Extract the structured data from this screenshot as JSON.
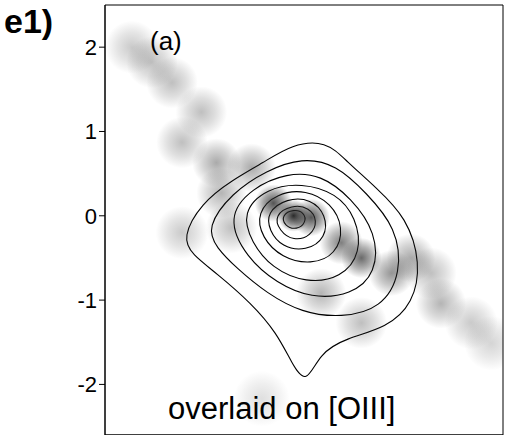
{
  "chart_data": {
    "type": "contour",
    "annotations": [
      "e1)",
      "(a)",
      "overlaid on [OIII]"
    ],
    "xlim": [
      -2.25,
      2.5
    ],
    "ylim": [
      -2.6,
      2.5
    ],
    "xticks": [
      -2,
      -1,
      0,
      1,
      2
    ],
    "yticks": [
      -2,
      -1,
      0,
      1,
      2
    ],
    "tick_labels": "y",
    "grid": false,
    "color": "#000000",
    "line_style": "solid",
    "contours": [
      {
        "points": [
          [
            -1.33,
            -0.26
          ],
          [
            -1.1,
            0.15
          ],
          [
            -0.74,
            0.42
          ],
          [
            -0.36,
            0.63
          ],
          [
            -0.02,
            0.85
          ],
          [
            0.39,
            0.89
          ],
          [
            0.63,
            0.65
          ],
          [
            0.99,
            0.33
          ],
          [
            1.35,
            -0.02
          ],
          [
            1.52,
            -0.56
          ],
          [
            1.43,
            -1.04
          ],
          [
            1.11,
            -1.33
          ],
          [
            0.63,
            -1.45
          ],
          [
            0.31,
            -1.63
          ],
          [
            0.15,
            -2.01
          ],
          [
            -0.02,
            -1.75
          ],
          [
            -0.2,
            -1.39
          ],
          [
            -0.5,
            -1.04
          ],
          [
            -0.92,
            -0.68
          ],
          [
            -1.21,
            -0.46
          ]
        ]
      },
      {
        "points": [
          [
            -1.04,
            -0.14
          ],
          [
            -0.74,
            0.27
          ],
          [
            -0.32,
            0.54
          ],
          [
            0.1,
            0.69
          ],
          [
            0.51,
            0.61
          ],
          [
            0.87,
            0.27
          ],
          [
            1.23,
            -0.14
          ],
          [
            1.29,
            -0.68
          ],
          [
            1.05,
            -1.1
          ],
          [
            0.57,
            -1.21
          ],
          [
            0.1,
            -1.15
          ],
          [
            -0.32,
            -0.92
          ],
          [
            -0.68,
            -0.62
          ],
          [
            -0.92,
            -0.38
          ]
        ]
      },
      {
        "points": [
          [
            -0.8,
            -0.02
          ],
          [
            -0.5,
            0.33
          ],
          [
            -0.08,
            0.51
          ],
          [
            0.33,
            0.49
          ],
          [
            0.69,
            0.21
          ],
          [
            0.99,
            -0.2
          ],
          [
            0.99,
            -0.68
          ],
          [
            0.69,
            -0.94
          ],
          [
            0.21,
            -0.98
          ],
          [
            -0.2,
            -0.8
          ],
          [
            -0.56,
            -0.5
          ]
        ]
      },
      {
        "points": [
          [
            -0.62,
            0.04
          ],
          [
            -0.32,
            0.33
          ],
          [
            0.1,
            0.39
          ],
          [
            0.51,
            0.27
          ],
          [
            0.75,
            -0.02
          ],
          [
            0.81,
            -0.44
          ],
          [
            0.57,
            -0.74
          ],
          [
            0.15,
            -0.8
          ],
          [
            -0.26,
            -0.62
          ],
          [
            -0.5,
            -0.32
          ]
        ]
      },
      {
        "points": [
          [
            -0.44,
            0.04
          ],
          [
            -0.2,
            0.27
          ],
          [
            0.15,
            0.31
          ],
          [
            0.45,
            0.15
          ],
          [
            0.6,
            -0.14
          ],
          [
            0.51,
            -0.46
          ],
          [
            0.21,
            -0.58
          ],
          [
            -0.14,
            -0.5
          ],
          [
            -0.38,
            -0.26
          ]
        ]
      },
      {
        "points": [
          [
            -0.32,
            0.04
          ],
          [
            -0.08,
            0.21
          ],
          [
            0.21,
            0.2
          ],
          [
            0.39,
            0.01
          ],
          [
            0.39,
            -0.26
          ],
          [
            0.15,
            -0.42
          ],
          [
            -0.14,
            -0.37
          ],
          [
            -0.29,
            -0.18
          ]
        ]
      },
      {
        "points": [
          [
            -0.23,
            0.01
          ],
          [
            -0.02,
            0.13
          ],
          [
            0.19,
            0.1
          ],
          [
            0.29,
            -0.06
          ],
          [
            0.21,
            -0.24
          ],
          [
            0.0,
            -0.3
          ],
          [
            -0.17,
            -0.18
          ]
        ]
      },
      {
        "points": [
          [
            -0.14,
            0.01
          ],
          [
            0.0,
            0.08
          ],
          [
            0.13,
            0.04
          ],
          [
            0.15,
            -0.08
          ],
          [
            0.04,
            -0.17
          ],
          [
            -0.11,
            -0.12
          ]
        ]
      }
    ],
    "image": {
      "color": "#2a2a2a",
      "points": [
        [
          0,
          0,
          1
        ],
        [
          -0.24,
          0.15,
          0.8
        ],
        [
          0.21,
          -0.02,
          0.8
        ],
        [
          -0.5,
          0.57,
          0.4
        ],
        [
          -0.92,
          0.63,
          0.4
        ],
        [
          -1.33,
          0.87,
          0.3
        ],
        [
          -1.1,
          1.23,
          0.3
        ],
        [
          -1.45,
          1.58,
          0.3
        ],
        [
          -1.69,
          1.82,
          0.3
        ],
        [
          -1.93,
          2.0,
          0.25
        ],
        [
          0.57,
          -0.32,
          0.6
        ],
        [
          0.81,
          -0.5,
          0.7
        ],
        [
          1.17,
          -0.68,
          0.5
        ],
        [
          1.4,
          -0.5,
          0.4
        ],
        [
          1.64,
          -0.68,
          0.3
        ],
        [
          1.76,
          -1.04,
          0.35
        ],
        [
          2.12,
          -1.27,
          0.25
        ],
        [
          2.36,
          -1.51,
          0.2
        ],
        [
          0.33,
          -0.92,
          0.35
        ],
        [
          0.81,
          -1.27,
          0.3
        ],
        [
          -0.74,
          -0.14,
          0.3
        ],
        [
          -0.86,
          0.27,
          0.35
        ],
        [
          -1.33,
          -0.2,
          0.25
        ],
        [
          -0.38,
          -2.17,
          0.15
        ]
      ]
    }
  }
}
